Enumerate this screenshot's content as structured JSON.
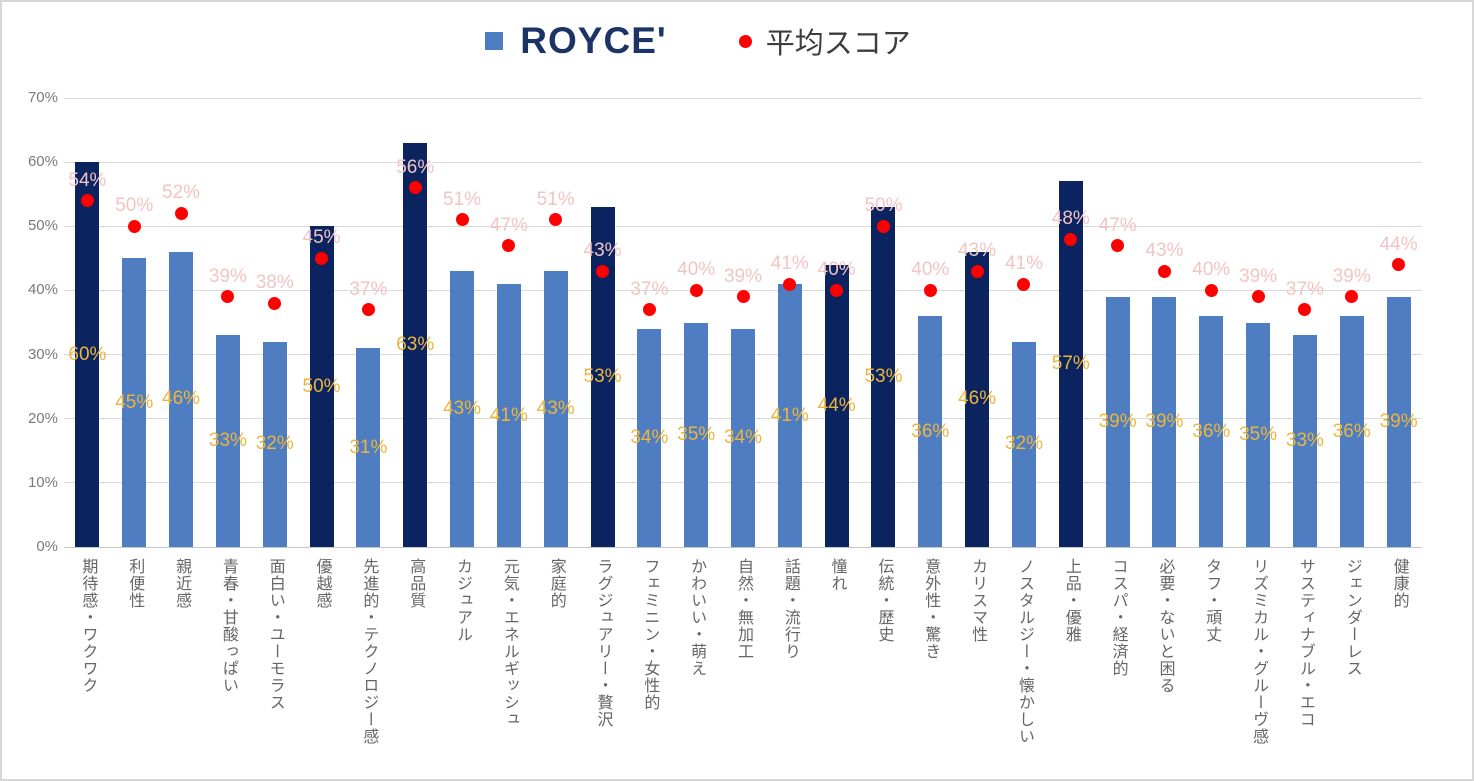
{
  "legend": {
    "items": [
      {
        "label": "ROYCE'",
        "marker": "square"
      },
      {
        "label": "平均スコア",
        "marker": "dot"
      }
    ]
  },
  "y_axis": {
    "ticks": [
      "0%",
      "10%",
      "20%",
      "30%",
      "40%",
      "50%",
      "60%",
      "70%"
    ]
  },
  "chart_data": {
    "type": "bar",
    "title": "",
    "xlabel": "",
    "ylabel": "",
    "ylim": [
      0,
      70
    ],
    "grid": "horizontal",
    "legend_position": "top",
    "categories": [
      "期待感・ワクワク",
      "利便性",
      "親近感",
      "青春・甘酸っぱい",
      "面白い・ユーモラス",
      "優越感",
      "先進的・テクノロジー感",
      "高品質",
      "カジュアル",
      "元気・エネルギッシュ",
      "家庭的",
      "ラグジュアリー・贅沢",
      "フェミニン・女性的",
      "かわいい・萌え",
      "自然・無加工",
      "話題・流行り",
      "憧れ",
      "伝統・歴史",
      "意外性・驚き",
      "カリスマ性",
      "ノスタルジー・懐かしい",
      "上品・優雅",
      "コスパ・経済的",
      "必要・ないと困る",
      "タフ・頑丈",
      "リズミカル・グルーヴ感",
      "サスティナブル・エコ",
      "ジェンダーレス",
      "健康的"
    ],
    "series": [
      {
        "name": "ROYCE'",
        "type": "bar",
        "values": [
          60,
          45,
          46,
          33,
          32,
          50,
          31,
          63,
          43,
          41,
          43,
          53,
          34,
          35,
          34,
          41,
          44,
          53,
          36,
          46,
          32,
          57,
          39,
          39,
          36,
          35,
          33,
          36,
          39
        ],
        "labels": [
          "60%",
          "45%",
          "46%",
          "33%",
          "32%",
          "50%",
          "31%",
          "63%",
          "43%",
          "41%",
          "43%",
          "53%",
          "34%",
          "35%",
          "34%",
          "41%",
          "44%",
          "53%",
          "36%",
          "46%",
          "32%",
          "57%",
          "39%",
          "39%",
          "36%",
          "35%",
          "33%",
          "36%",
          "39%"
        ],
        "highlighted_category_indices": [
          0,
          5,
          7,
          11,
          16,
          17,
          19,
          21
        ]
      },
      {
        "name": "平均スコア",
        "type": "scatter",
        "values": [
          54,
          50,
          52,
          39,
          38,
          45,
          37,
          56,
          51,
          47,
          51,
          43,
          37,
          40,
          39,
          41,
          40,
          50,
          40,
          43,
          41,
          48,
          47,
          43,
          40,
          39,
          37,
          39,
          44
        ],
        "labels": [
          "54%",
          "50%",
          "52%",
          "39%",
          "38%",
          "45%",
          "37%",
          "56%",
          "51%",
          "47%",
          "51%",
          "43%",
          "37%",
          "40%",
          "39%",
          "41%",
          "40%",
          "50%",
          "40%",
          "43%",
          "41%",
          "48%",
          "47%",
          "43%",
          "40%",
          "39%",
          "37%",
          "39%",
          "44%"
        ]
      }
    ]
  },
  "colors": {
    "bar": "#4E7EC1",
    "bar_highlight": "#0B2460",
    "avg_dot": "#FF0000",
    "bar_value_label": "#EDB53C",
    "avg_value_label": "#F2C4C4",
    "brand_navy": "#1C3366",
    "gridline": "#D9D9D9",
    "axis_line": "#C6C6C6"
  }
}
